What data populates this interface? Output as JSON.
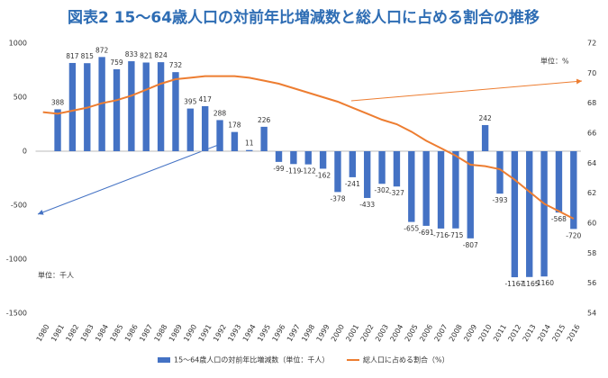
{
  "chart_data": {
    "type": "bar-line",
    "title": "図表2 15～64歳人口の対前年比増減数と総人口に占める割合の推移",
    "categories": [
      "1980",
      "1981",
      "1982",
      "1983",
      "1984",
      "1985",
      "1986",
      "1987",
      "1988",
      "1989",
      "1990",
      "1991",
      "1992",
      "1993",
      "1994",
      "1995",
      "1996",
      "1997",
      "1998",
      "1999",
      "2000",
      "2001",
      "2002",
      "2003",
      "2004",
      "2005",
      "2006",
      "2007",
      "2008",
      "2009",
      "2010",
      "2011",
      "2012",
      "2013",
      "2014",
      "2015",
      "2016"
    ],
    "series": [
      {
        "name": "15～64歳人口の対前年比増減数（単位：千人）",
        "color": "#4472c4",
        "type": "bar",
        "values": [
          null,
          388,
          817,
          815,
          872,
          759,
          833,
          821,
          824,
          732,
          395,
          417,
          288,
          178,
          11,
          226,
          -99,
          -119,
          -122,
          -162,
          -378,
          -241,
          -433,
          -302,
          -327,
          -655,
          -691,
          -716,
          -715,
          -807,
          242,
          -393,
          -1167,
          -1165,
          -1160,
          -568,
          -720
        ]
      },
      {
        "name": "総人口に占める割合（%）",
        "color": "#ed7d31",
        "type": "line",
        "axis": "y2",
        "values": [
          67.4,
          67.3,
          67.5,
          67.7,
          68.0,
          68.2,
          68.5,
          68.9,
          69.3,
          69.6,
          69.7,
          69.8,
          69.8,
          69.8,
          69.7,
          69.5,
          69.3,
          69.0,
          68.7,
          68.4,
          68.1,
          67.7,
          67.3,
          66.9,
          66.6,
          66.1,
          65.5,
          65.0,
          64.5,
          63.9,
          63.8,
          63.6,
          62.9,
          62.1,
          61.3,
          60.8,
          60.3
        ]
      }
    ],
    "ylim": [
      -1500,
      1000
    ],
    "yticks": [
      -1500,
      -1000,
      -500,
      0,
      500,
      1000
    ],
    "y2lim": [
      54,
      72
    ],
    "y2ticks": [
      54,
      56,
      58,
      60,
      62,
      64,
      66,
      68,
      70,
      72
    ],
    "y_unit": "単位：千人",
    "y2_unit": "単位：%"
  }
}
